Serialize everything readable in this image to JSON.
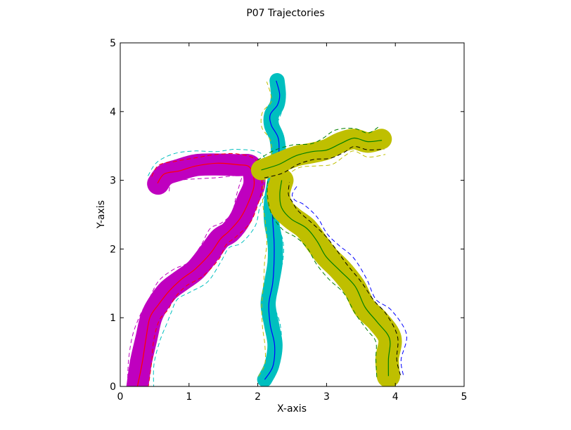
{
  "chart_data": {
    "type": "line",
    "title": "P07 Trajectories",
    "xlabel": "X-axis",
    "ylabel": "Y-axis",
    "xlim": [
      0,
      5
    ],
    "ylim": [
      0,
      5
    ],
    "xticks": [
      0,
      1,
      2,
      3,
      4,
      5
    ],
    "yticks": [
      0,
      1,
      2,
      3,
      4,
      5
    ],
    "grid": false,
    "legend": "none",
    "series": [
      {
        "color": "#bf00bf",
        "mean_color": "#ff0000",
        "band_width": 0.16,
        "dashed_colors": [
          "#ff0000",
          "#bf00bf",
          "#00bfbf"
        ],
        "x": [
          0.25,
          0.3,
          0.38,
          0.45,
          0.55,
          0.7,
          0.9,
          1.1,
          1.3,
          1.45,
          1.6,
          1.75,
          1.85,
          1.95,
          1.9,
          1.7,
          1.4,
          1.1,
          0.85,
          0.65,
          0.55
        ],
        "y": [
          0.0,
          0.35,
          0.7,
          1.0,
          1.2,
          1.4,
          1.55,
          1.7,
          1.95,
          2.15,
          2.25,
          2.45,
          2.7,
          2.95,
          3.2,
          3.22,
          3.23,
          3.22,
          3.15,
          3.08,
          2.95
        ]
      },
      {
        "color": "#00bfbf",
        "mean_color": "#0000ff",
        "band_width": 0.11,
        "dashed_colors": [
          "#00bfbf",
          "#bfbf00"
        ],
        "x": [
          2.1,
          2.2,
          2.25,
          2.2,
          2.15,
          2.2,
          2.25,
          2.25,
          2.2,
          2.2,
          2.25,
          2.3,
          2.28,
          2.2,
          2.2,
          2.28,
          2.3,
          2.28
        ],
        "y": [
          0.1,
          0.3,
          0.6,
          0.9,
          1.2,
          1.5,
          1.8,
          2.1,
          2.4,
          2.7,
          3.0,
          3.3,
          3.6,
          3.8,
          3.95,
          4.1,
          4.25,
          4.45
        ]
      },
      {
        "color": "#bfbf00",
        "mean_color": "#007f00",
        "band_width": 0.17,
        "dashed_colors": [
          "#000000",
          "#007f00",
          "#0000ff"
        ],
        "x": [
          3.9,
          3.88,
          3.92,
          3.75,
          3.55,
          3.4,
          3.2,
          3.0,
          2.85,
          2.7,
          2.5,
          2.35,
          2.3,
          2.35
        ],
        "y": [
          0.15,
          0.4,
          0.7,
          0.95,
          1.15,
          1.45,
          1.7,
          1.9,
          2.1,
          2.3,
          2.45,
          2.6,
          2.8,
          3.0
        ]
      },
      {
        "color": "#bfbf00",
        "mean_color": "#007f00",
        "band_width": 0.15,
        "dashed_colors": [
          "#000000",
          "#007f00",
          "#bfbf00"
        ],
        "x": [
          2.05,
          2.3,
          2.55,
          2.8,
          3.0,
          3.2,
          3.4,
          3.6,
          3.8
        ],
        "y": [
          3.15,
          3.25,
          3.35,
          3.4,
          3.45,
          3.55,
          3.6,
          3.55,
          3.6
        ]
      }
    ]
  }
}
